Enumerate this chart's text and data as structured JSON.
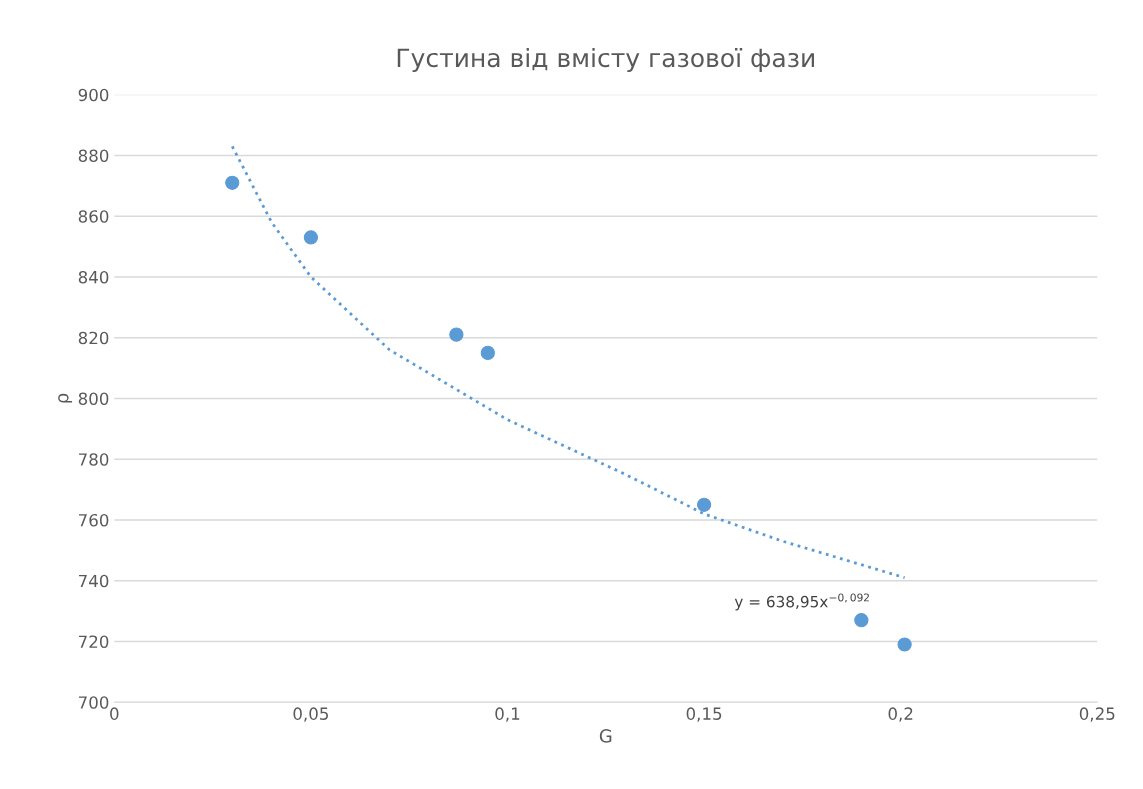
{
  "chart_data": {
    "type": "scatter",
    "title": "Густина від вмісту газової фази",
    "xlabel": "G",
    "ylabel": "ρ",
    "x": [
      0.03,
      0.05,
      0.087,
      0.095,
      0.15,
      0.19,
      0.201
    ],
    "series": [
      {
        "color": "#5b9bd5",
        "marker": "circle",
        "values": [
          871,
          853,
          821,
          815,
          765,
          727,
          719
        ]
      },
      {
        "type": "line",
        "color": "#5b9bd5",
        "line_style": "dotted",
        "marker": "none",
        "x": [
          0.03,
          0.04,
          0.05,
          0.07,
          0.1,
          0.13,
          0.15,
          0.17,
          0.201
        ],
        "values": [
          883,
          858,
          840,
          816,
          793,
          775,
          762,
          753,
          741
        ]
      }
    ],
    "annotations": [
      "y = 638,95x$^{−0,092}$"
    ],
    "xlim": [
      0,
      0.25
    ],
    "xticks": [
      0,
      {
        "value": 0.05,
        "label": "0,05"
      },
      {
        "value": 0.1,
        "label": "0,1"
      },
      {
        "value": 0.15,
        "label": "0,15"
      },
      {
        "value": 0.2,
        "label": "0,2"
      },
      {
        "value": 0.25,
        "label": "0,25"
      }
    ],
    "ylim": [
      700,
      900
    ],
    "yticks": [
      700,
      720,
      740,
      760,
      780,
      800,
      820,
      840,
      860,
      880,
      900
    ],
    "grid": "y",
    "legend": false
  }
}
